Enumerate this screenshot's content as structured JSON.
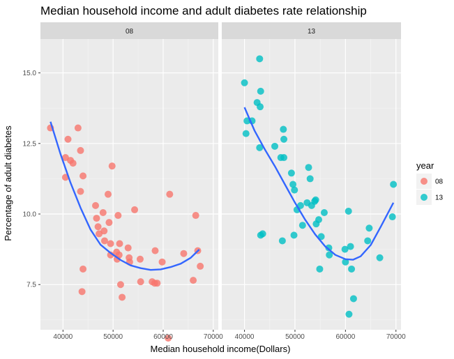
{
  "chart_data": {
    "type": "scatter",
    "title": "Median household income and adult diabetes rate relationship",
    "xlabel": "Median household income(Dollars)",
    "ylabel": "Percentage of adult diabetes",
    "xlim": [
      35500,
      71000
    ],
    "ylim": [
      5.9,
      16.2
    ],
    "x_ticks": [
      40000,
      50000,
      60000,
      70000
    ],
    "x_tick_labels": [
      "40000",
      "50000",
      "60000",
      "70000"
    ],
    "y_ticks": [
      7.5,
      10.0,
      12.5,
      15.0
    ],
    "y_tick_labels": [
      "7.5",
      "10.0",
      "12.5",
      "15.0"
    ],
    "grid": true,
    "legend": {
      "title": "year",
      "position": "right"
    },
    "facets": [
      {
        "label": "08",
        "color": "#F8766D",
        "points": [
          [
            37500,
            13.05
          ],
          [
            40500,
            12.0
          ],
          [
            40500,
            11.3
          ],
          [
            41000,
            12.65
          ],
          [
            41500,
            11.9
          ],
          [
            42000,
            11.8
          ],
          [
            43000,
            13.05
          ],
          [
            43500,
            12.25
          ],
          [
            43500,
            10.8
          ],
          [
            44000,
            11.35
          ],
          [
            44000,
            8.05
          ],
          [
            43800,
            7.25
          ],
          [
            46500,
            10.3
          ],
          [
            46700,
            9.85
          ],
          [
            47000,
            9.55
          ],
          [
            47200,
            9.3
          ],
          [
            48000,
            10.05
          ],
          [
            48200,
            9.4
          ],
          [
            48300,
            9.05
          ],
          [
            49000,
            10.7
          ],
          [
            49200,
            9.7
          ],
          [
            49500,
            8.55
          ],
          [
            49500,
            8.95
          ],
          [
            49800,
            11.7
          ],
          [
            50700,
            8.65
          ],
          [
            50800,
            8.4
          ],
          [
            51000,
            9.95
          ],
          [
            51200,
            8.55
          ],
          [
            51300,
            8.95
          ],
          [
            51500,
            7.5
          ],
          [
            51800,
            7.05
          ],
          [
            53000,
            8.8
          ],
          [
            53200,
            8.45
          ],
          [
            53300,
            8.3
          ],
          [
            54300,
            10.15
          ],
          [
            55400,
            8.4
          ],
          [
            55500,
            7.6
          ],
          [
            57800,
            7.6
          ],
          [
            58400,
            8.7
          ],
          [
            58300,
            7.55
          ],
          [
            58800,
            7.55
          ],
          [
            59800,
            8.3
          ],
          [
            61000,
            5.6
          ],
          [
            61300,
            10.7
          ],
          [
            64100,
            8.6
          ],
          [
            66000,
            7.65
          ],
          [
            66500,
            9.95
          ],
          [
            66900,
            8.7
          ],
          [
            67400,
            8.15
          ]
        ],
        "trend": [
          [
            37500,
            13.27
          ],
          [
            39500,
            12.13
          ],
          [
            41500,
            11.11
          ],
          [
            43500,
            10.22
          ],
          [
            45500,
            9.45
          ],
          [
            47500,
            8.91
          ],
          [
            49500,
            8.62
          ],
          [
            51500,
            8.37
          ],
          [
            53500,
            8.18
          ],
          [
            55500,
            8.08
          ],
          [
            57500,
            8.02
          ],
          [
            59500,
            8.04
          ],
          [
            61500,
            8.12
          ],
          [
            63500,
            8.24
          ],
          [
            65500,
            8.45
          ],
          [
            67200,
            8.74
          ]
        ]
      },
      {
        "label": "13",
        "color": "#00BFC4",
        "points": [
          [
            40000,
            14.65
          ],
          [
            40300,
            12.85
          ],
          [
            40500,
            13.3
          ],
          [
            41500,
            13.3
          ],
          [
            42500,
            13.95
          ],
          [
            43000,
            15.5
          ],
          [
            43200,
            14.35
          ],
          [
            43100,
            13.8
          ],
          [
            43000,
            12.35
          ],
          [
            43200,
            9.25
          ],
          [
            43600,
            9.3
          ],
          [
            46000,
            12.4
          ],
          [
            47200,
            12.0
          ],
          [
            47700,
            13.0
          ],
          [
            47800,
            12.65
          ],
          [
            47500,
            9.05
          ],
          [
            47800,
            12.0
          ],
          [
            49300,
            11.45
          ],
          [
            49600,
            11.05
          ],
          [
            49900,
            10.85
          ],
          [
            49800,
            9.25
          ],
          [
            50400,
            10.15
          ],
          [
            51100,
            10.3
          ],
          [
            51500,
            9.6
          ],
          [
            52400,
            10.4
          ],
          [
            52700,
            11.65
          ],
          [
            53000,
            11.25
          ],
          [
            53300,
            10.3
          ],
          [
            53900,
            10.45
          ],
          [
            54100,
            10.5
          ],
          [
            54200,
            9.65
          ],
          [
            54700,
            9.8
          ],
          [
            54900,
            8.05
          ],
          [
            55200,
            9.2
          ],
          [
            55800,
            10.05
          ],
          [
            56700,
            8.8
          ],
          [
            56800,
            8.55
          ],
          [
            59900,
            8.75
          ],
          [
            60000,
            8.3
          ],
          [
            60600,
            10.1
          ],
          [
            60700,
            6.45
          ],
          [
            61000,
            8.85
          ],
          [
            61200,
            8.05
          ],
          [
            61600,
            7.0
          ],
          [
            64400,
            9.05
          ],
          [
            64700,
            9.5
          ],
          [
            66800,
            8.45
          ],
          [
            69300,
            9.9
          ],
          [
            69500,
            11.05
          ]
        ],
        "trend": [
          [
            40000,
            13.78
          ],
          [
            42000,
            12.95
          ],
          [
            44000,
            12.3
          ],
          [
            46000,
            11.7
          ],
          [
            48000,
            11.05
          ],
          [
            50000,
            10.4
          ],
          [
            52000,
            9.8
          ],
          [
            54000,
            9.28
          ],
          [
            56000,
            8.85
          ],
          [
            58000,
            8.55
          ],
          [
            60000,
            8.4
          ],
          [
            61500,
            8.38
          ],
          [
            63000,
            8.5
          ],
          [
            65000,
            8.9
          ],
          [
            67000,
            9.55
          ],
          [
            69500,
            10.4
          ]
        ]
      }
    ]
  }
}
